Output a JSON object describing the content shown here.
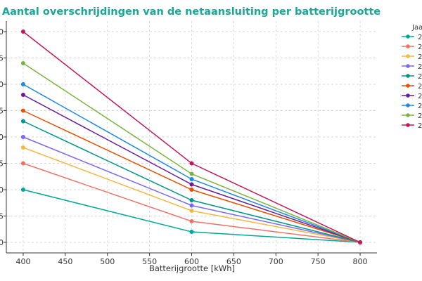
{
  "chart_data": {
    "type": "line",
    "title": "Aantal overschrijdingen van de netaansluiting per batterijgrootte",
    "xlabel": "Batterijgrootte [kWh]",
    "ylabel": "",
    "x": [
      400,
      600,
      800
    ],
    "xlim": [
      380,
      820
    ],
    "ylim": [
      -2,
      42
    ],
    "x_ticks": [
      "400",
      "450",
      "500",
      "550",
      "600",
      "650",
      "700",
      "750",
      "800"
    ],
    "y_ticks": [
      "0",
      "5",
      "0",
      "5",
      "0",
      "5",
      "0",
      "5",
      "0"
    ],
    "grid": true,
    "legend_title": "Jaa",
    "legend_position": "outside-right",
    "series": [
      {
        "name": "2",
        "color": "#00a896",
        "values": [
          10,
          2,
          0
        ]
      },
      {
        "name": "2",
        "color": "#f07167",
        "values": [
          15,
          4,
          0
        ]
      },
      {
        "name": "2",
        "color": "#f4b942",
        "values": [
          18,
          6,
          0
        ]
      },
      {
        "name": "2",
        "color": "#7b68ee",
        "values": [
          20,
          7,
          0
        ]
      },
      {
        "name": "2",
        "color": "#009688",
        "values": [
          23,
          8,
          0
        ]
      },
      {
        "name": "2",
        "color": "#e65100",
        "values": [
          25,
          10,
          0
        ]
      },
      {
        "name": "2",
        "color": "#6a1b9a",
        "values": [
          28,
          11,
          0
        ]
      },
      {
        "name": "2",
        "color": "#1e88e5",
        "values": [
          30,
          12,
          0
        ]
      },
      {
        "name": "2",
        "color": "#7cb342",
        "values": [
          34,
          13,
          0
        ]
      },
      {
        "name": "2",
        "color": "#c2185b",
        "values": [
          40,
          15,
          0
        ]
      }
    ],
    "title_color": "#19a896"
  }
}
